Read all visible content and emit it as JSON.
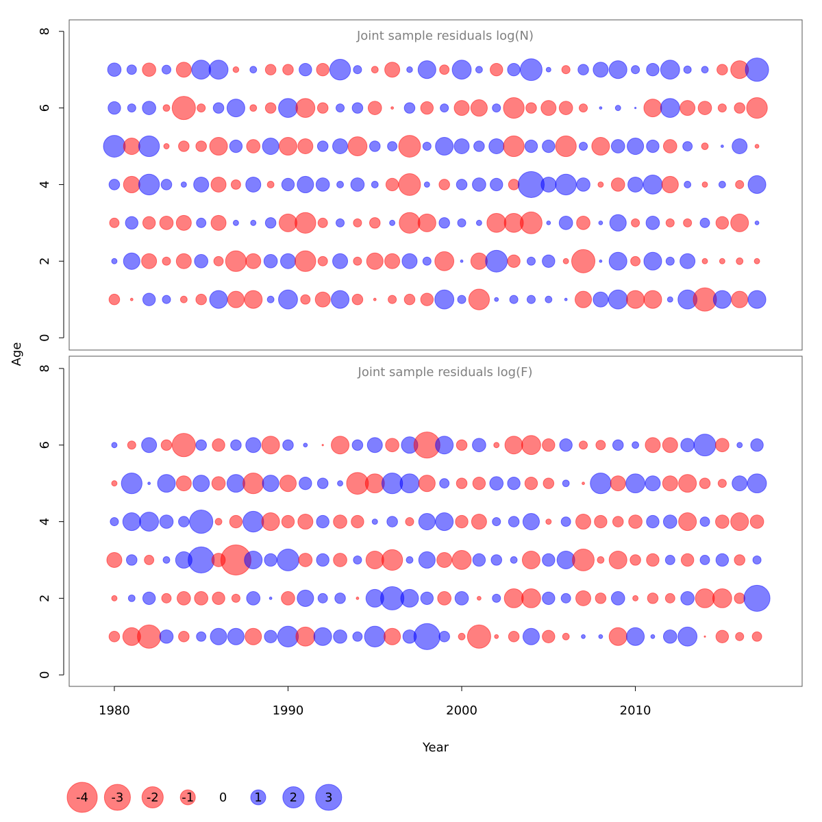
{
  "ylabel": "Age",
  "xlabel": "Year",
  "colors": {
    "negative": "#ff0000",
    "positive": "#0000ff"
  },
  "legend": [
    -4,
    -3,
    -2,
    -1,
    0,
    1,
    2,
    3
  ],
  "chart_data": [
    {
      "type": "bubble",
      "title": "Joint sample residuals log(N)",
      "x": [
        1980,
        1981,
        1982,
        1983,
        1984,
        1985,
        1986,
        1987,
        1988,
        1989,
        1990,
        1991,
        1992,
        1993,
        1994,
        1995,
        1996,
        1997,
        1998,
        1999,
        2000,
        2001,
        2002,
        2003,
        2004,
        2005,
        2006,
        2007,
        2008,
        2009,
        2010,
        2011,
        2012,
        2013,
        2014,
        2015,
        2016,
        2017
      ],
      "ages": [
        1,
        2,
        3,
        4,
        5,
        6,
        7
      ],
      "residuals": [
        [
          -0.5,
          -0.03,
          0.7,
          0.3,
          -0.2,
          -0.5,
          1.4,
          -1.2,
          -1.4,
          0.2,
          1.6,
          -0.4,
          -1,
          1.4,
          -0.5,
          -0.03,
          -0.3,
          -0.5,
          -0.7,
          1.6,
          0.3,
          -1.9,
          0.07,
          0.3,
          0.3,
          0.2,
          0.03,
          -1.2,
          1,
          1.6,
          -1.4,
          -1.4,
          0.13,
          1.6,
          -2.4,
          1.4,
          -1.2,
          1.4
        ],
        [
          0.13,
          1.2,
          -1,
          -0.3,
          -1,
          0.8,
          -0.4,
          -1.9,
          -1,
          0.8,
          1,
          -1.9,
          -0.4,
          1,
          -0.3,
          -1.2,
          -1,
          1,
          0.3,
          -1.6,
          0.03,
          -1.2,
          2.1,
          -0.7,
          0.3,
          0.7,
          -0.13,
          -2.4,
          0.03,
          1.4,
          -0.4,
          1.4,
          0.3,
          1,
          -0.13,
          -0.13,
          -0.2,
          -0.13
        ],
        [
          -0.4,
          0.7,
          -0.7,
          -0.8,
          -1,
          0.4,
          -1,
          0.13,
          0.13,
          0.5,
          -1.4,
          -1.9,
          -0.4,
          0.3,
          -0.3,
          -0.5,
          0.13,
          -1.9,
          -1.4,
          0.5,
          0.3,
          0.13,
          -1.6,
          -1.6,
          -2.1,
          0.07,
          0.8,
          -0.8,
          0.07,
          1.2,
          -0.3,
          0.8,
          -0.3,
          -0.3,
          0.4,
          -0.7,
          -1.4,
          0.07
        ],
        [
          0.5,
          -1.2,
          1.9,
          0.5,
          0.13,
          1,
          -1,
          -0.4,
          1,
          -0.2,
          0.7,
          1.2,
          0.8,
          0.2,
          0.8,
          0.2,
          -0.7,
          -2.1,
          0.13,
          -0.5,
          0.5,
          0.8,
          0.7,
          -0.5,
          3,
          1,
          1.9,
          0.8,
          -0.13,
          -0.8,
          1,
          1.6,
          -1.2,
          0.2,
          -0.13,
          0.2,
          -0.3,
          1.4
        ],
        [
          2.1,
          -1.2,
          1.9,
          -0.13,
          -0.5,
          -0.5,
          -1.4,
          0.7,
          -0.8,
          1.2,
          -1.4,
          -1,
          0.5,
          1,
          -1.6,
          0.5,
          0.4,
          -2.1,
          0.3,
          1.4,
          1,
          0.5,
          1,
          -1.9,
          0.7,
          0.7,
          -1.9,
          0.3,
          -1.4,
          0.8,
          1.2,
          0.7,
          -0.8,
          0.4,
          -0.2,
          0.03,
          1,
          -0.07
        ],
        [
          0.7,
          0.3,
          0.8,
          -0.2,
          -2.4,
          -0.3,
          0.5,
          1.4,
          -0.2,
          -0.5,
          1.6,
          -1.6,
          -0.5,
          0.3,
          0.5,
          -0.8,
          -0.03,
          0.5,
          -0.7,
          0.3,
          -1,
          -1.2,
          0.3,
          -1.9,
          -0.5,
          -1,
          -0.8,
          -0.3,
          0.03,
          0.13,
          0.01,
          -1.4,
          1.6,
          -1,
          -0.8,
          -0.3,
          -0.5,
          -1.9
        ],
        [
          0.8,
          0.4,
          -0.8,
          0.35,
          -1,
          1.6,
          1.6,
          -0.15,
          0.2,
          -0.5,
          -0.5,
          0.7,
          -0.7,
          1.9,
          0.3,
          -0.2,
          -1,
          0.15,
          1.4,
          -0.4,
          1.6,
          0.2,
          -0.7,
          0.7,
          2.1,
          0.1,
          -0.3,
          0.5,
          1,
          1.4,
          0.3,
          0.7,
          1.6,
          0.25,
          0.2,
          -0.5,
          -1.4,
          2.4
        ]
      ],
      "xlim": [
        1977.4,
        2019.6
      ],
      "ylim": [
        -0.32,
        8.3
      ],
      "yticks": [
        0,
        2,
        4,
        6,
        8
      ]
    },
    {
      "type": "bubble",
      "title": "Joint sample residuals log(F)",
      "x": [
        1980,
        1981,
        1982,
        1983,
        1984,
        1985,
        1986,
        1987,
        1988,
        1989,
        1990,
        1991,
        1992,
        1993,
        1994,
        1995,
        1996,
        1997,
        1998,
        1999,
        2000,
        2001,
        2002,
        2003,
        2004,
        2005,
        2006,
        2007,
        2008,
        2009,
        2010,
        2011,
        2012,
        2013,
        2014,
        2015,
        2016,
        2017
      ],
      "ages": [
        1,
        2,
        3,
        4,
        5,
        6
      ],
      "residuals": [
        [
          -0.5,
          -1.4,
          -2.4,
          0.8,
          -0.5,
          0.4,
          1.2,
          1.2,
          -1.2,
          0.7,
          1.9,
          -1.6,
          1.4,
          0.8,
          0.4,
          1.9,
          -1.2,
          0.8,
          3,
          0.5,
          -0.2,
          -2.4,
          -0.07,
          -0.5,
          1.2,
          -0.7,
          -0.2,
          0.07,
          0.07,
          -1.4,
          1.4,
          0.07,
          0.8,
          1.6,
          -0.01,
          -0.7,
          -0.3,
          -0.4
        ],
        [
          -0.13,
          0.2,
          0.7,
          -0.4,
          -0.8,
          -0.8,
          -0.7,
          -0.3,
          0.8,
          0.03,
          -0.8,
          1.2,
          0.4,
          0.5,
          -0.03,
          1.4,
          2.4,
          1.4,
          0.7,
          -0.8,
          0.8,
          -0.07,
          0.3,
          -1.6,
          -1.6,
          0.7,
          0.4,
          -1,
          -0.5,
          0.8,
          -0.13,
          -0.5,
          -0.4,
          0.8,
          -1.6,
          -1.6,
          -0.5,
          3
        ],
        [
          -1,
          0.5,
          -0.4,
          0.2,
          1.2,
          3,
          -0.8,
          -4,
          1.4,
          0.7,
          2.1,
          -0.8,
          0.7,
          -0.8,
          0.3,
          -1.4,
          -1.9,
          0.2,
          1.2,
          -1,
          -1.6,
          0.7,
          0.5,
          0.2,
          -1.4,
          0.7,
          1.4,
          -2.1,
          -0.2,
          -1.4,
          -0.5,
          -0.7,
          0.4,
          -0.7,
          0.4,
          0.7,
          -0.5,
          0.3
        ],
        [
          0.3,
          1.4,
          1.6,
          0.8,
          0.5,
          2.4,
          -0.2,
          -0.7,
          1.9,
          -1.4,
          -0.7,
          -1,
          0.7,
          -0.8,
          -0.7,
          0.13,
          0.5,
          -0.3,
          1.2,
          1.4,
          -0.7,
          -1,
          0.3,
          0.5,
          1.2,
          -0.13,
          0.4,
          -1,
          -0.7,
          -0.5,
          -0.8,
          0.7,
          0.8,
          -1.4,
          0.4,
          -0.8,
          -1.4,
          -0.8
        ],
        [
          -0.13,
          1.9,
          0.03,
          1.4,
          -1,
          1.2,
          -0.8,
          1.4,
          -1.9,
          1.2,
          -1.2,
          0.7,
          0.5,
          0.13,
          -2.1,
          -1.6,
          1.9,
          1.6,
          -1.2,
          0.4,
          -0.5,
          -0.7,
          0.8,
          0.7,
          -0.7,
          -0.5,
          0.2,
          -0.03,
          1.9,
          -1,
          1.6,
          1,
          -1,
          -1.4,
          -0.5,
          -0.3,
          1,
          1.6
        ],
        [
          0.13,
          -0.3,
          1,
          -0.5,
          -2.4,
          0.5,
          -0.7,
          0.5,
          1,
          -1.4,
          0.5,
          0.07,
          -0.01,
          -1.4,
          0.5,
          1,
          -0.8,
          1.2,
          -3,
          1.4,
          -0.5,
          0.8,
          -0.13,
          -1.4,
          -1.6,
          -0.7,
          0.7,
          -0.3,
          -0.4,
          0.5,
          0.2,
          -1,
          -1,
          0.8,
          2.1,
          -0.8,
          0.13,
          0.7
        ]
      ],
      "xlim": [
        1977.4,
        2019.6
      ],
      "ylim": [
        -0.3,
        8.32
      ],
      "yticks": [
        0,
        2,
        4,
        6,
        8
      ],
      "xticks": [
        1980,
        1990,
        2000,
        2010
      ]
    }
  ]
}
